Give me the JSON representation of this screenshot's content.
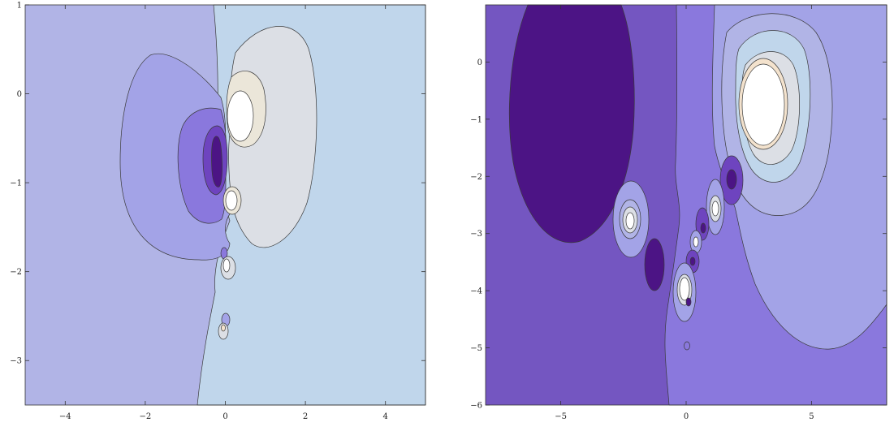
{
  "colors": {
    "left_background": "#b1b4e6",
    "left_right_region": "#c0d6eb",
    "right_background": "#7456c1",
    "palette": [
      "#4c1485",
      "#6e44bf",
      "#8a78dd",
      "#a3a3e7",
      "#b1b4e6",
      "#c0d6eb",
      "#dcdfe5",
      "#ebe6d9",
      "#f3e2cd",
      "#ffffff"
    ]
  },
  "chart_data": [
    {
      "type": "contour",
      "title": "",
      "xlabel": "",
      "ylabel": "",
      "xlim": [
        -5,
        5
      ],
      "ylim": [
        -3.5,
        1
      ],
      "x_ticks": [
        -4,
        -2,
        0,
        2,
        4
      ],
      "y_ticks": [
        1,
        0,
        -1,
        -2,
        -3
      ],
      "x_tick_labels": [
        "-4",
        "-2",
        "0",
        "2",
        "4"
      ],
      "y_tick_labels": [
        "1",
        "0",
        "-1",
        "-2",
        "-3"
      ],
      "features": [
        {
          "kind": "high",
          "x": 0.35,
          "y": -0.25
        },
        {
          "kind": "high",
          "x": 0.15,
          "y": -1.2
        },
        {
          "kind": "high",
          "x": 0.0,
          "y": -1.95
        },
        {
          "kind": "high",
          "x": 0.0,
          "y": -2.65
        },
        {
          "kind": "low",
          "x": -0.2,
          "y": -0.75
        }
      ]
    },
    {
      "type": "contour",
      "title": "",
      "xlabel": "",
      "ylabel": "",
      "xlim": [
        -8,
        8
      ],
      "ylim": [
        -6,
        1
      ],
      "x_ticks": [
        -5,
        0,
        5
      ],
      "y_ticks": [
        0,
        -1,
        -2,
        -3,
        -4,
        -5,
        -6
      ],
      "x_tick_labels": [
        "-5",
        "0",
        "5"
      ],
      "y_tick_labels": [
        "0",
        "-1",
        "-2",
        "-3",
        "-4",
        "-5",
        "-6"
      ],
      "features": [
        {
          "kind": "high",
          "x": 3.2,
          "y": -0.8
        },
        {
          "kind": "high",
          "x": -2.3,
          "y": -2.75
        },
        {
          "kind": "high",
          "x": 1.2,
          "y": -2.6
        },
        {
          "kind": "high",
          "x": 0.4,
          "y": -3.2
        },
        {
          "kind": "high",
          "x": 0.0,
          "y": -3.9
        },
        {
          "kind": "low",
          "x": -5.0,
          "y": -1.0
        },
        {
          "kind": "low",
          "x": -1.3,
          "y": -3.6
        },
        {
          "kind": "low",
          "x": 1.9,
          "y": -2.05
        },
        {
          "kind": "low",
          "x": 0.7,
          "y": -2.9
        },
        {
          "kind": "low",
          "x": 0.3,
          "y": -3.5
        }
      ]
    }
  ]
}
